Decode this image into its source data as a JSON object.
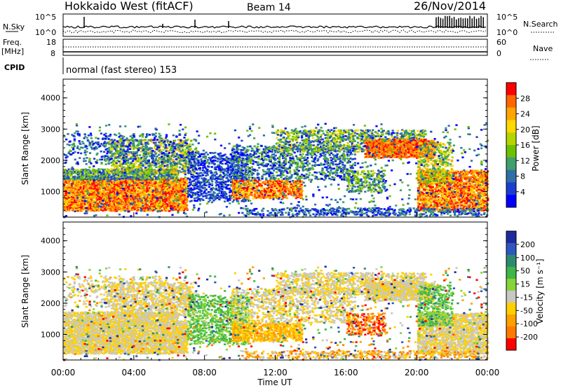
{
  "header": {
    "title": "Hokkaido West (fitACF)",
    "beam": "Beam 14",
    "date": "26/Nov/2014"
  },
  "top_panels": {
    "nsky_label": "N.Sky",
    "nsky_ticks": [
      "10^5",
      "10^0"
    ],
    "nsearch_label": "N.Search",
    "nsearch_ticks": [
      "10^5",
      "10^0"
    ],
    "freq_label_line1": "Freq.",
    "freq_label_line2": "[MHz]",
    "freq_ticks": [
      "18",
      "8"
    ],
    "nave_label": "Nave",
    "nave_ticks": [
      "60",
      "0"
    ],
    "cpid_label": "CPID",
    "cpid_text": "normal (fast stereo) 153"
  },
  "chart_data": [
    {
      "type": "heatmap",
      "name": "power",
      "ylabel": "Slant Range [km]",
      "xlabel": "",
      "ylim": [
        180,
        4600
      ],
      "y_ticks": [
        "1000",
        "2000",
        "3000",
        "4000"
      ],
      "colorbar_label": "Power [dB]",
      "colorbar_ticks": [
        "28",
        "24",
        "20",
        "16",
        "12",
        "8",
        "4"
      ],
      "colorbar_colors": [
        "#ff0000",
        "#ff6600",
        "#ffa500",
        "#ffd800",
        "#b6d400",
        "#6cc000",
        "#3f9f6e",
        "#2e6fa8",
        "#1a3fd0",
        "#0000ff"
      ]
    },
    {
      "type": "heatmap",
      "name": "velocity",
      "ylabel": "Slant Range [km]",
      "xlabel": "Time UT",
      "ylim": [
        180,
        4600
      ],
      "y_ticks": [
        "1000",
        "2000",
        "3000",
        "4000"
      ],
      "x_ticks": [
        "00:00",
        "04:00",
        "08:00",
        "12:00",
        "16:00",
        "20:00",
        "00:00"
      ],
      "colorbar_label": "Velocity [m s⁻¹]",
      "colorbar_ticks": [
        "200",
        "100",
        "50",
        "15",
        "-15",
        "-50",
        "-100",
        "-200"
      ],
      "colorbar_colors": [
        "#1f2a9e",
        "#2e58c0",
        "#2e8a6e",
        "#3fb54a",
        "#86d43a",
        "#c8c8c0",
        "#ffd000",
        "#ffa000",
        "#ff7a00",
        "#ff0000"
      ]
    }
  ]
}
